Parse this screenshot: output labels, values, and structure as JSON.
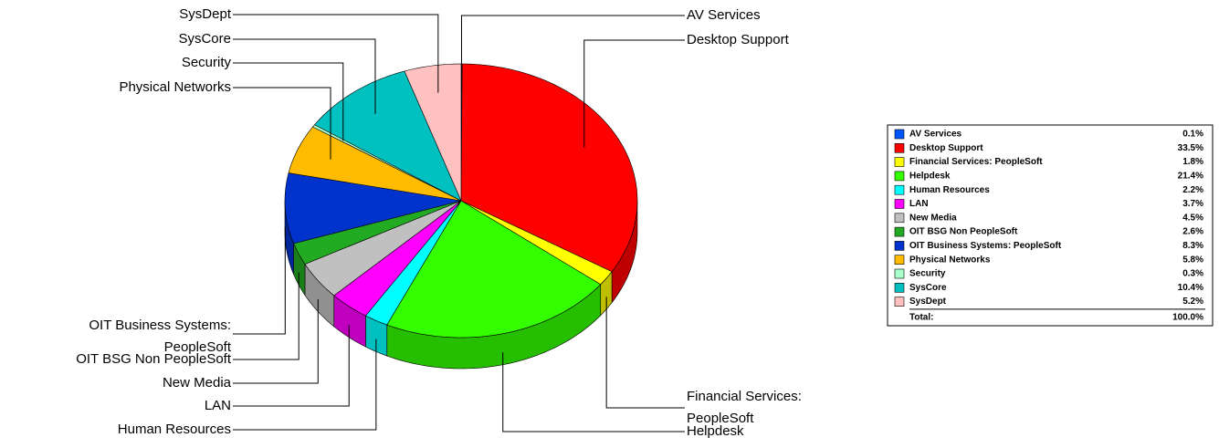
{
  "chart_data": {
    "type": "pie3d",
    "categories": [
      "AV Services",
      "Desktop Support",
      "Financial Services: PeopleSoft",
      "Helpdesk",
      "Human Resources",
      "LAN",
      "New Media",
      "OIT BSG Non PeopleSoft",
      "OIT Business Systems: PeopleSoft",
      "Physical Networks",
      "Security",
      "SysCore",
      "SysDept"
    ],
    "values": [
      0.1,
      33.5,
      1.8,
      21.4,
      2.2,
      3.7,
      4.5,
      2.6,
      8.3,
      5.8,
      0.3,
      10.4,
      5.2
    ],
    "value_labels": [
      "0.1%",
      "33.5%",
      "1.8%",
      "21.4%",
      "2.2%",
      "3.7%",
      "4.5%",
      "2.6%",
      "8.3%",
      "5.8%",
      "0.3%",
      "10.4%",
      "5.2%"
    ],
    "colors": [
      "#0055ff",
      "#ff0000",
      "#ffff00",
      "#33ff00",
      "#00ffff",
      "#ff00ff",
      "#c0c0c0",
      "#22aa22",
      "#0033cc",
      "#ffbb00",
      "#aaffcc",
      "#00c0c0",
      "#ffc0c0"
    ],
    "total": {
      "label": "Total:",
      "value": 100,
      "value_label": "100.0%"
    },
    "legend": "right"
  }
}
